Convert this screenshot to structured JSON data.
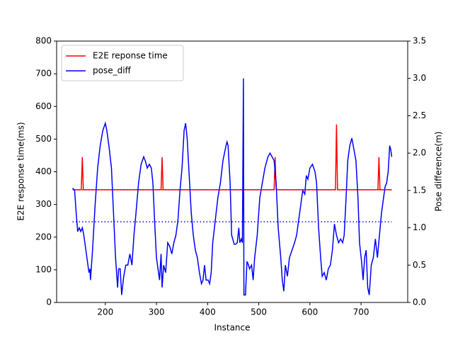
{
  "chart_data": {
    "type": "line",
    "xlabel": "Instance",
    "ylabel": "E2E response time(ms)",
    "y2label": "Pose difference(m)",
    "xlim": [
      104.8,
      791.2
    ],
    "xticks": [
      200,
      300,
      400,
      500,
      600,
      700
    ],
    "ylim": [
      0,
      800
    ],
    "yticks": [
      0,
      100,
      200,
      300,
      400,
      500,
      600,
      700,
      800
    ],
    "y2lim": [
      0,
      3.5
    ],
    "y2ticks": [
      {
        "value": 0,
        "label": "0.0"
      },
      0.5,
      {
        "value": 1,
        "label": "1.0"
      },
      1.5,
      {
        "value": 2,
        "label": "2.0"
      },
      2.5,
      {
        "value": 3,
        "label": "3.0"
      },
      3.5
    ],
    "legend": "upper left",
    "series": [
      {
        "name": "E2E reponse time",
        "color": "#ff0000",
        "x": [
          136,
          153,
          155,
          157,
          309,
          311,
          313,
          530,
          532,
          534,
          650,
          652,
          654,
          733,
          735,
          737,
          760
        ],
        "values": [
          345,
          345,
          445,
          345,
          345,
          445,
          345,
          345,
          445,
          345,
          345,
          545,
          345,
          345,
          445,
          345,
          345
        ]
      },
      {
        "name": "pose_diff",
        "color": "#0000ff",
        "axis": "y2",
        "x": [
          136,
          140,
          143,
          146,
          149,
          152,
          155,
          158,
          162,
          166,
          168,
          170,
          171,
          175,
          180,
          185,
          190,
          195,
          200,
          203,
          207,
          212,
          216,
          220,
          224,
          226,
          229,
          232,
          236,
          240,
          244,
          248,
          252,
          256,
          260,
          265,
          270,
          275,
          278,
          282,
          286,
          290,
          293,
          297,
          300,
          303,
          306,
          309,
          311,
          314,
          318,
          322,
          326,
          330,
          334,
          338,
          342,
          346,
          350,
          354,
          357,
          360,
          364,
          368,
          372,
          376,
          380,
          384,
          388,
          391,
          394,
          397,
          401,
          404,
          407,
          410,
          415,
          420,
          425,
          430,
          436,
          438,
          440,
          444,
          447,
          452,
          455,
          458,
          461,
          463,
          466,
          468,
          470,
          471,
          474,
          477,
          480,
          482,
          486,
          489,
          492,
          497,
          502,
          507,
          512,
          518,
          522,
          526,
          530,
          534,
          538,
          543,
          546,
          549,
          552,
          556,
          560,
          565,
          570,
          574,
          578,
          582,
          586,
          590,
          593,
          596,
          600,
          605,
          610,
          613,
          617,
          621,
          624,
          628,
          632,
          636,
          640,
          644,
          648,
          652,
          656,
          660,
          664,
          667,
          670,
          674,
          678,
          682,
          686,
          690,
          694,
          697,
          701,
          704,
          707,
          710,
          713,
          716,
          720,
          724,
          728,
          732,
          736,
          740,
          744,
          747,
          750,
          753,
          756,
          758,
          760
        ],
        "values": [
          1.53,
          1.5,
          1.2,
          0.95,
          1.0,
          0.95,
          1.0,
          0.9,
          0.7,
          0.5,
          0.4,
          0.45,
          0.3,
          0.7,
          1.3,
          1.8,
          2.1,
          2.3,
          2.4,
          2.3,
          2.1,
          1.8,
          1.2,
          0.6,
          0.2,
          0.45,
          0.45,
          0.1,
          0.35,
          0.5,
          0.5,
          0.65,
          0.5,
          0.9,
          1.2,
          1.6,
          1.85,
          1.95,
          1.9,
          1.8,
          1.85,
          1.8,
          1.6,
          1.0,
          0.6,
          0.45,
          0.3,
          0.65,
          0.2,
          0.5,
          0.4,
          0.8,
          0.75,
          0.65,
          0.8,
          0.9,
          1.1,
          1.5,
          1.8,
          2.3,
          2.4,
          2.2,
          1.7,
          1.2,
          0.9,
          0.7,
          0.6,
          0.4,
          0.25,
          0.3,
          0.5,
          0.3,
          0.3,
          0.25,
          0.4,
          0.8,
          1.1,
          1.4,
          1.6,
          1.9,
          2.1,
          2.15,
          2.1,
          1.6,
          0.9,
          0.78,
          0.78,
          0.8,
          1.0,
          0.8,
          0.85,
          0.8,
          3.0,
          0.1,
          0.1,
          0.55,
          0.5,
          0.45,
          0.5,
          0.3,
          0.6,
          0.9,
          1.4,
          1.6,
          1.8,
          1.95,
          2.0,
          1.95,
          1.9,
          1.6,
          1.0,
          0.6,
          0.3,
          0.15,
          0.5,
          0.35,
          0.6,
          0.7,
          0.8,
          0.9,
          1.1,
          1.3,
          1.5,
          1.45,
          1.7,
          1.65,
          1.8,
          1.85,
          1.75,
          1.6,
          1.0,
          0.6,
          0.35,
          0.4,
          0.3,
          0.45,
          0.5,
          0.7,
          1.05,
          0.9,
          0.8,
          0.85,
          0.8,
          0.9,
          1.3,
          1.9,
          2.1,
          2.2,
          2.05,
          1.9,
          1.4,
          0.8,
          0.55,
          0.3,
          0.6,
          0.7,
          0.2,
          0.1,
          0.5,
          0.6,
          0.85,
          0.6,
          0.9,
          1.2,
          1.4,
          1.55,
          1.6,
          1.75,
          2.1,
          2.05,
          1.95
        ]
      },
      {
        "color": "#ff0000",
        "dashed": true,
        "x": [
          136,
          760
        ],
        "values": [
          345,
          345
        ]
      },
      {
        "color": "#0000ff",
        "dashed": true,
        "axis": "y2",
        "x": [
          136,
          760
        ],
        "values": [
          1.08,
          1.08
        ]
      }
    ]
  }
}
